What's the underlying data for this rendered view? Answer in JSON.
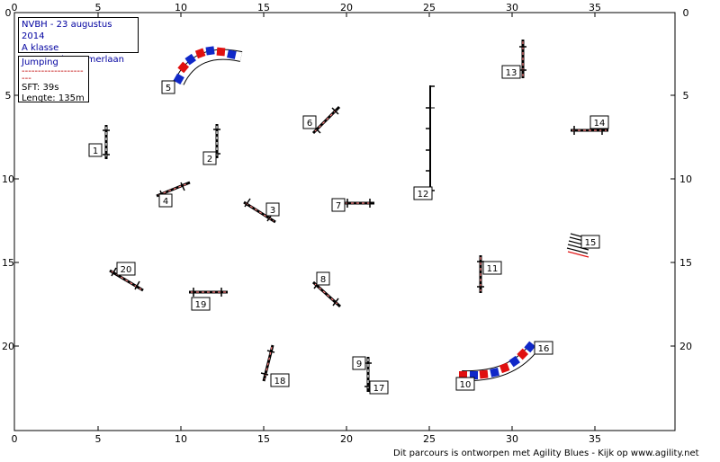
{
  "header": {
    "title": "NVBH - 23 augustus 2014",
    "class": "A klasse",
    "judge": "KM: Sandy Ammerlaan"
  },
  "course": {
    "type": "Jumping",
    "separator": "----------------------",
    "sft": "SFT:  39s",
    "length": "Lengte: 135m"
  },
  "axes": {
    "x_ticks": [
      "0",
      "5",
      "10",
      "15",
      "20",
      "25",
      "30",
      "35"
    ],
    "y_ticks": [
      "0",
      "5",
      "10",
      "15",
      "20"
    ]
  },
  "obstacles": [
    {
      "n": "1",
      "kind": "jump",
      "x": 5.5,
      "y": 8.1,
      "angle": 90
    },
    {
      "n": "2",
      "kind": "jump",
      "x": 12.2,
      "y": 7.5,
      "angle": 90
    },
    {
      "n": "3",
      "kind": "jump",
      "x": 14.8,
      "y": 12.0,
      "angle": 33
    },
    {
      "n": "4",
      "kind": "jump",
      "x": 9.6,
      "y": 10.9,
      "angle": -30
    },
    {
      "n": "5",
      "kind": "tunnel",
      "x": 12.0,
      "y": 4.3
    },
    {
      "n": "6",
      "kind": "jump",
      "x": 19.0,
      "y": 6.4,
      "angle": -45
    },
    {
      "n": "7",
      "kind": "jump",
      "x": 20.7,
      "y": 11.5,
      "angle": 0
    },
    {
      "n": "8",
      "kind": "jump",
      "x": 18.9,
      "y": 16.7,
      "angle": 42
    },
    {
      "n": "9",
      "kind": "jump",
      "x": 21.3,
      "y": 21.1,
      "angle": 90
    },
    {
      "n": "10",
      "kind": "tunnel",
      "x": 29.0,
      "y": 21.4
    },
    {
      "n": "11",
      "kind": "jump",
      "x": 28.1,
      "y": 15.5,
      "angle": 90
    },
    {
      "n": "12",
      "kind": "wall",
      "x": 25.1,
      "y": 7.8
    },
    {
      "n": "13",
      "kind": "jump",
      "x": 30.7,
      "y": 2.6,
      "angle": 90
    },
    {
      "n": "14",
      "kind": "jump",
      "x": 35.0,
      "y": 6.9,
      "angle": 0
    },
    {
      "n": "15",
      "kind": "tire",
      "x": 34.2,
      "y": 13.9
    },
    {
      "n": "16",
      "kind": "tunnel",
      "x": 29.0,
      "y": 21.4
    },
    {
      "n": "17",
      "kind": "jump",
      "x": 21.3,
      "y": 21.1,
      "angle": 90
    },
    {
      "n": "18",
      "kind": "jump",
      "x": 15.3,
      "y": 21.0,
      "angle": -75
    },
    {
      "n": "19",
      "kind": "jump",
      "x": 11.9,
      "y": 16.7,
      "angle": 0
    },
    {
      "n": "20",
      "kind": "jump",
      "x": 6.6,
      "y": 16.1,
      "angle": 30
    }
  ],
  "footer": "Dit parcours is ontworpen met Agility Blues - Kijk op www.agility.net",
  "colors": {
    "red": "#e01010",
    "blue": "#1028c8",
    "frame": "#000000",
    "label_text": "#000000",
    "info_text": "#0000a0"
  }
}
